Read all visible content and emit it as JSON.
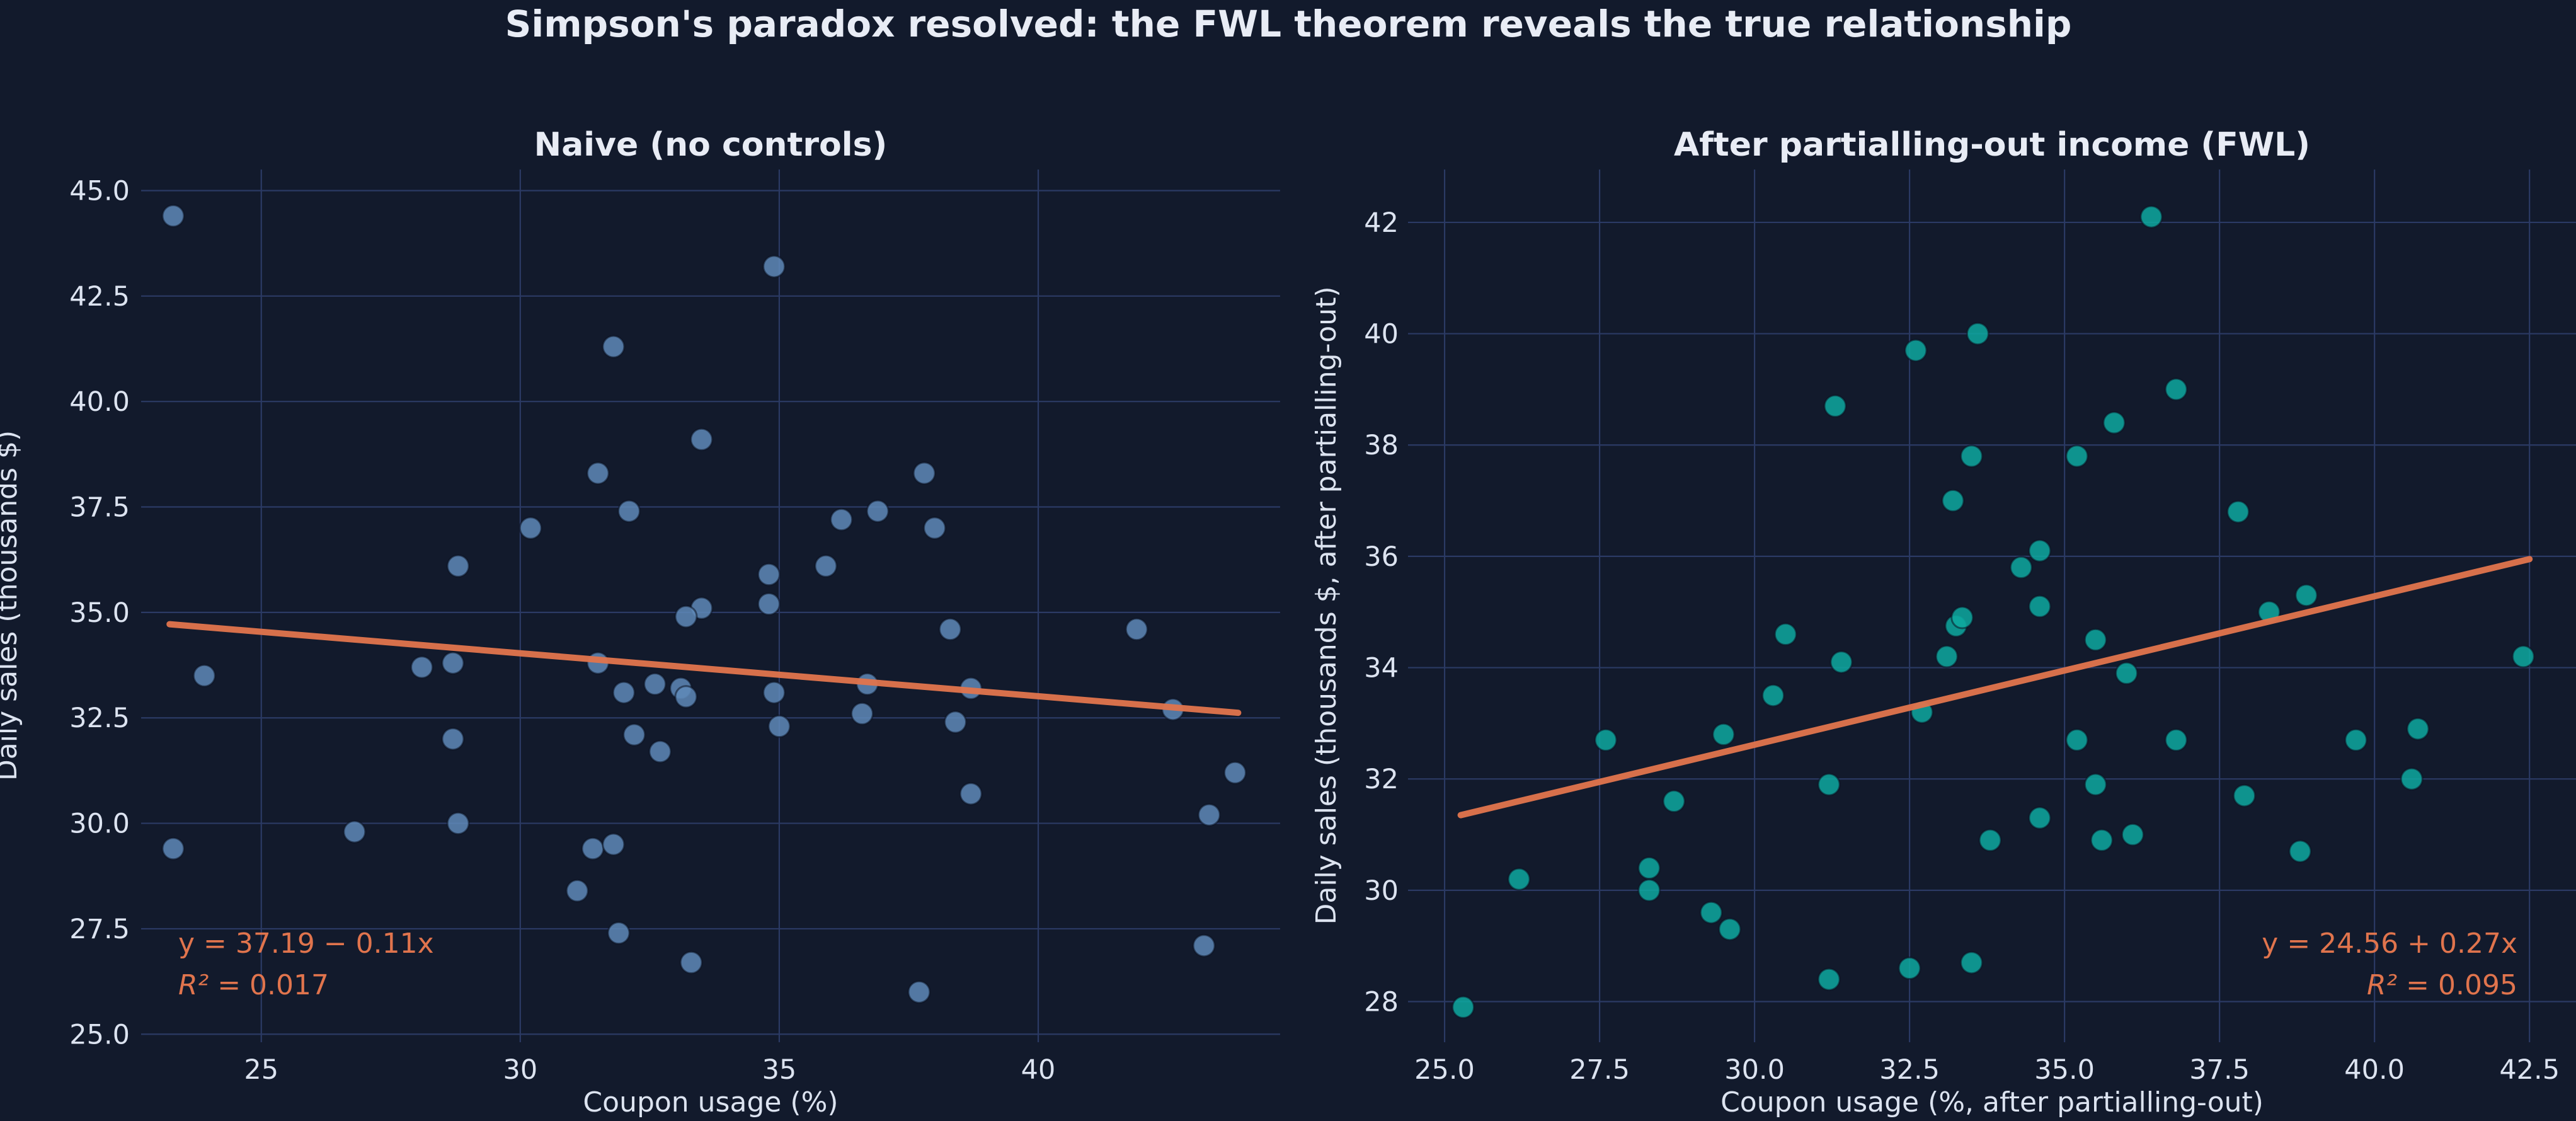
{
  "figure": {
    "title": "Simpson's paradox resolved: the FWL theorem reveals the true relationship",
    "background": "#121a2c",
    "text_color": "#e8ecf5",
    "grid_color": "#2b3a64",
    "accent_color": "#e0744d"
  },
  "chart_data": [
    {
      "type": "scatter",
      "title": "Naive (no controls)",
      "xlabel": "Coupon usage (%)",
      "ylabel": "Daily sales (thousands $)",
      "legend": "none",
      "grid": true,
      "point_color": "#5f8ab8",
      "xlim": [
        22.68,
        44.67
      ],
      "ylim": [
        24.81,
        45.5
      ],
      "xticks": [
        25,
        30,
        35,
        40
      ],
      "xtick_labels": [
        "25",
        "30",
        "35",
        "40"
      ],
      "yticks": [
        25,
        27.5,
        30,
        32.5,
        35,
        37.5,
        40,
        42.5,
        45
      ],
      "ytick_labels": [
        "25.0",
        "27.5",
        "30.0",
        "32.5",
        "35.0",
        "37.5",
        "40.0",
        "42.5",
        "45.0"
      ],
      "x": [
        23.3,
        23.9,
        23.3,
        26.8,
        28.1,
        28.7,
        28.8,
        28.7,
        28.8,
        30.2,
        31.5,
        31.8,
        31.5,
        31.4,
        31.8,
        31.1,
        31.9,
        32.1,
        32.0,
        32.6,
        33.1,
        33.2,
        32.2,
        32.7,
        33.3,
        33.5,
        33.2,
        33.5,
        34.8,
        34.8,
        34.9,
        34.9,
        35.0,
        35.9,
        36.2,
        36.9,
        36.7,
        36.6,
        37.8,
        38.0,
        38.3,
        38.7,
        38.4,
        38.7,
        37.7,
        41.9,
        42.6,
        43.8,
        43.3,
        43.2
      ],
      "y": [
        44.4,
        33.5,
        29.4,
        29.8,
        33.7,
        33.8,
        36.1,
        32.0,
        30.0,
        37.0,
        38.3,
        41.3,
        33.8,
        29.4,
        29.5,
        28.4,
        27.4,
        37.4,
        33.1,
        33.3,
        33.2,
        33.0,
        32.1,
        31.7,
        26.7,
        35.1,
        34.9,
        39.1,
        35.9,
        35.2,
        43.2,
        33.1,
        32.3,
        36.1,
        37.2,
        37.4,
        33.3,
        32.6,
        38.3,
        37.0,
        34.6,
        33.2,
        32.4,
        30.7,
        26.0,
        34.6,
        32.7,
        31.2,
        30.2,
        27.1
      ],
      "regression": {
        "x1": 23.23,
        "y1": 34.72,
        "x2": 43.86,
        "y2": 32.62,
        "label": "y = 37.19 − 0.11x",
        "r2_symbol": "R²",
        "r2_value": " = 0.017",
        "color": "#e0744d"
      }
    },
    {
      "type": "scatter",
      "title": "After partialling-out income (FWL)",
      "xlabel": "Coupon usage (%, after partialling-out)",
      "ylabel": "Daily sales (thousands $, after partialling-out)",
      "legend": "none",
      "grid": true,
      "point_color": "#0ea9a0",
      "xlim": [
        24.41,
        43.25
      ],
      "ylim": [
        27.27,
        42.95
      ],
      "xticks": [
        25,
        27.5,
        30,
        32.5,
        35,
        37.5,
        40,
        42.5
      ],
      "xtick_labels": [
        "25.0",
        "27.5",
        "30.0",
        "32.5",
        "35.0",
        "37.5",
        "40.0",
        "42.5"
      ],
      "yticks": [
        28,
        30,
        32,
        34,
        36,
        38,
        40,
        42
      ],
      "ytick_labels": [
        "28",
        "30",
        "32",
        "34",
        "36",
        "38",
        "40",
        "42"
      ],
      "x": [
        25.3,
        26.2,
        27.6,
        28.3,
        28.3,
        28.7,
        29.3,
        29.6,
        29.5,
        30.3,
        30.5,
        31.2,
        31.2,
        31.4,
        31.3,
        32.5,
        32.6,
        32.7,
        33.1,
        33.25,
        33.35,
        33.5,
        33.2,
        33.5,
        33.6,
        33.8,
        34.3,
        34.6,
        34.6,
        34.6,
        35.2,
        35.2,
        35.5,
        35.5,
        35.6,
        35.8,
        36.0,
        36.1,
        36.4,
        36.8,
        36.8,
        37.8,
        37.9,
        38.3,
        38.8,
        38.9,
        39.7,
        40.6,
        40.7,
        42.4
      ],
      "y": [
        27.9,
        30.2,
        32.7,
        30.4,
        30.0,
        31.6,
        29.6,
        29.3,
        32.8,
        33.5,
        34.6,
        31.9,
        28.4,
        34.1,
        38.7,
        28.6,
        39.7,
        33.2,
        34.2,
        34.75,
        34.9,
        37.8,
        37.0,
        28.7,
        40.0,
        30.9,
        35.8,
        36.1,
        35.1,
        31.3,
        37.8,
        32.7,
        34.5,
        31.9,
        30.9,
        38.4,
        33.9,
        31.0,
        42.1,
        39.0,
        32.7,
        36.8,
        31.7,
        35.0,
        30.7,
        35.3,
        32.7,
        32.0,
        32.9,
        34.2
      ],
      "regression": {
        "x1": 25.26,
        "y1": 31.35,
        "x2": 42.5,
        "y2": 35.95,
        "label": "y = 24.56 + 0.27x",
        "r2_symbol": "R²",
        "r2_value": " = 0.095",
        "color": "#e0744d"
      }
    }
  ]
}
